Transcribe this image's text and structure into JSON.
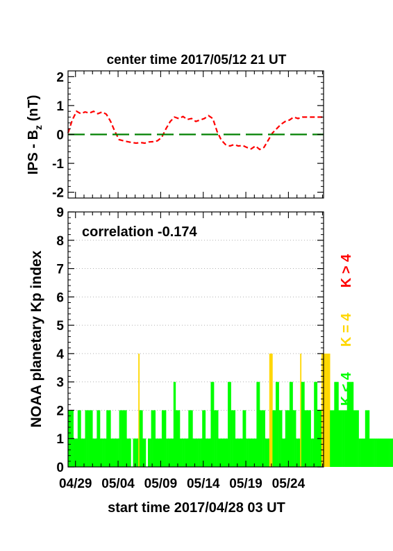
{
  "chart_data": [
    {
      "type": "line",
      "title": "center time 2017/05/12 21 UT",
      "ylabel": "IPS - B",
      "ylabel_subscript": "z",
      "ylabel_unit": " (nT)",
      "ylim": [
        -2.2,
        2.2
      ],
      "yticks": [
        -2,
        -1,
        0,
        1,
        2
      ],
      "xlim": [
        0,
        30
      ],
      "series": [
        {
          "color": "#ff0000",
          "style": "dashed",
          "x": [
            0,
            0.5,
            1,
            1.5,
            2,
            2.5,
            3,
            3.5,
            4,
            4.5,
            5,
            5.5,
            6,
            6.5,
            7,
            7.5,
            8,
            8.5,
            9,
            9.5,
            10,
            10.5,
            11,
            11.5,
            12,
            12.5,
            13,
            13.5,
            14,
            14.5,
            15,
            15.5,
            16,
            16.5,
            17,
            17.5,
            18,
            18.5,
            19,
            19.5,
            20,
            20.5,
            21,
            21.5,
            22,
            22.5,
            23,
            23.5,
            24,
            24.5,
            25,
            25.5,
            26,
            26.5,
            27,
            27.5,
            28,
            28.5,
            29,
            29.5,
            30
          ],
          "values": [
            0.05,
            0.5,
            0.8,
            0.72,
            0.78,
            0.74,
            0.8,
            0.72,
            0.78,
            0.7,
            0.45,
            0.1,
            -0.18,
            -0.22,
            -0.25,
            -0.28,
            -0.3,
            -0.28,
            -0.3,
            -0.26,
            -0.25,
            -0.22,
            -0.1,
            0.2,
            0.45,
            0.6,
            0.55,
            0.62,
            0.52,
            0.55,
            0.45,
            0.5,
            0.55,
            0.65,
            0.55,
            0.1,
            -0.2,
            -0.35,
            -0.4,
            -0.35,
            -0.4,
            -0.38,
            -0.45,
            -0.5,
            -0.4,
            -0.52,
            -0.45,
            -0.2,
            0.05,
            0.2,
            0.35,
            0.45,
            0.5,
            0.6,
            0.55,
            0.6,
            0.6,
            0.6,
            0.6,
            0.6,
            0.6
          ]
        },
        {
          "color": "#008000",
          "style": "long-dash",
          "x": [
            0,
            30
          ],
          "values": [
            0,
            0
          ]
        }
      ]
    },
    {
      "type": "bar",
      "ylabel": "NOAA planetary Kp index",
      "annotation": "correlation -0.174",
      "xlabel": "start time 2017/04/28 03 UT",
      "x_tick_labels": [
        "04/29",
        "05/04",
        "05/09",
        "05/14",
        "05/19",
        "05/24"
      ],
      "x_tick_positions": [
        0.875,
        5.875,
        10.875,
        15.875,
        20.875,
        25.875
      ],
      "xlim": [
        0,
        30
      ],
      "ylim": [
        0,
        9
      ],
      "yticks": [
        0,
        1,
        2,
        3,
        4,
        5,
        6,
        7,
        8,
        9
      ],
      "grid": true,
      "legend": [
        {
          "label": "K < 4",
          "color": "#00ff00"
        },
        {
          "label": "K = 4",
          "color": "#ffd700"
        },
        {
          "label": "K > 4",
          "color": "#ff0000"
        }
      ],
      "bin_width_days": 0.125,
      "kp": [
        2,
        2,
        2,
        2,
        2,
        1,
        1,
        1,
        1,
        2,
        2,
        2,
        1,
        1,
        1,
        1,
        2,
        2,
        2,
        2,
        2,
        2,
        2,
        1,
        1,
        1,
        1,
        2,
        2,
        2,
        1,
        1,
        1,
        1,
        1,
        1,
        2,
        2,
        2,
        2,
        1,
        1,
        1,
        1,
        1,
        1,
        1,
        1,
        2,
        2,
        2,
        2,
        2,
        2,
        2,
        1,
        1,
        1,
        1,
        0,
        0,
        1,
        1,
        1,
        1,
        1,
        4,
        2,
        2,
        2,
        1,
        1,
        1,
        0,
        0,
        1,
        1,
        1,
        2,
        2,
        2,
        2,
        1,
        1,
        1,
        1,
        1,
        1,
        2,
        2,
        2,
        2,
        1,
        1,
        1,
        1,
        1,
        1,
        1,
        3,
        3,
        2,
        2,
        2,
        2,
        1,
        1,
        1,
        1,
        1,
        1,
        1,
        1,
        2,
        2,
        2,
        2,
        1,
        1,
        1,
        1,
        1,
        1,
        1,
        1,
        1,
        2,
        2,
        2,
        1,
        1,
        1,
        1,
        1,
        3,
        3,
        3,
        2,
        2,
        2,
        2,
        1,
        1,
        1,
        1,
        1,
        1,
        1,
        1,
        1,
        3,
        3,
        3,
        2,
        2,
        2,
        2,
        1,
        1,
        1,
        1,
        1,
        1,
        1,
        2,
        2,
        2,
        1,
        1,
        1,
        1,
        1,
        1,
        1,
        1,
        1,
        1,
        3,
        3,
        3,
        2,
        2,
        2,
        2,
        2,
        1,
        1,
        1,
        1,
        4,
        4,
        4,
        2,
        2,
        2,
        3,
        3,
        3,
        2,
        2,
        2,
        1,
        1,
        1,
        2,
        2,
        2,
        2,
        3,
        3,
        3,
        2,
        2,
        2,
        1,
        1,
        1,
        1,
        4,
        3,
        3,
        3,
        2,
        2,
        2,
        2,
        2,
        2,
        1,
        1,
        1,
        3,
        3,
        3,
        2,
        2,
        2,
        2,
        4,
        4,
        4,
        4,
        4,
        4,
        4,
        4,
        2,
        2,
        2,
        2,
        3,
        3,
        3,
        3,
        2,
        2,
        2,
        2,
        2,
        2,
        2,
        2,
        3,
        3,
        3,
        3,
        3,
        3,
        2,
        2,
        2,
        2,
        2,
        1,
        1,
        1,
        1,
        1,
        1,
        2,
        2,
        2,
        2,
        1,
        1,
        1,
        1,
        1,
        1,
        1,
        1,
        1,
        1,
        1,
        1,
        1,
        1,
        1,
        1,
        1,
        1,
        1,
        1,
        1,
        1,
        1,
        1,
        1,
        1,
        1,
        1,
        1,
        1,
        1,
        1,
        1,
        1,
        1,
        1,
        1,
        1,
        1,
        1,
        1,
        1,
        1,
        1,
        1,
        1,
        1,
        1,
        1,
        1,
        1,
        1,
        1,
        1,
        1,
        1,
        1,
        1,
        1,
        1,
        1,
        1,
        1,
        1,
        1,
        1,
        1,
        1,
        1,
        1,
        1,
        1,
        1,
        1,
        1,
        1,
        1,
        1,
        1,
        1,
        1,
        1,
        1,
        1,
        1
      ]
    }
  ]
}
